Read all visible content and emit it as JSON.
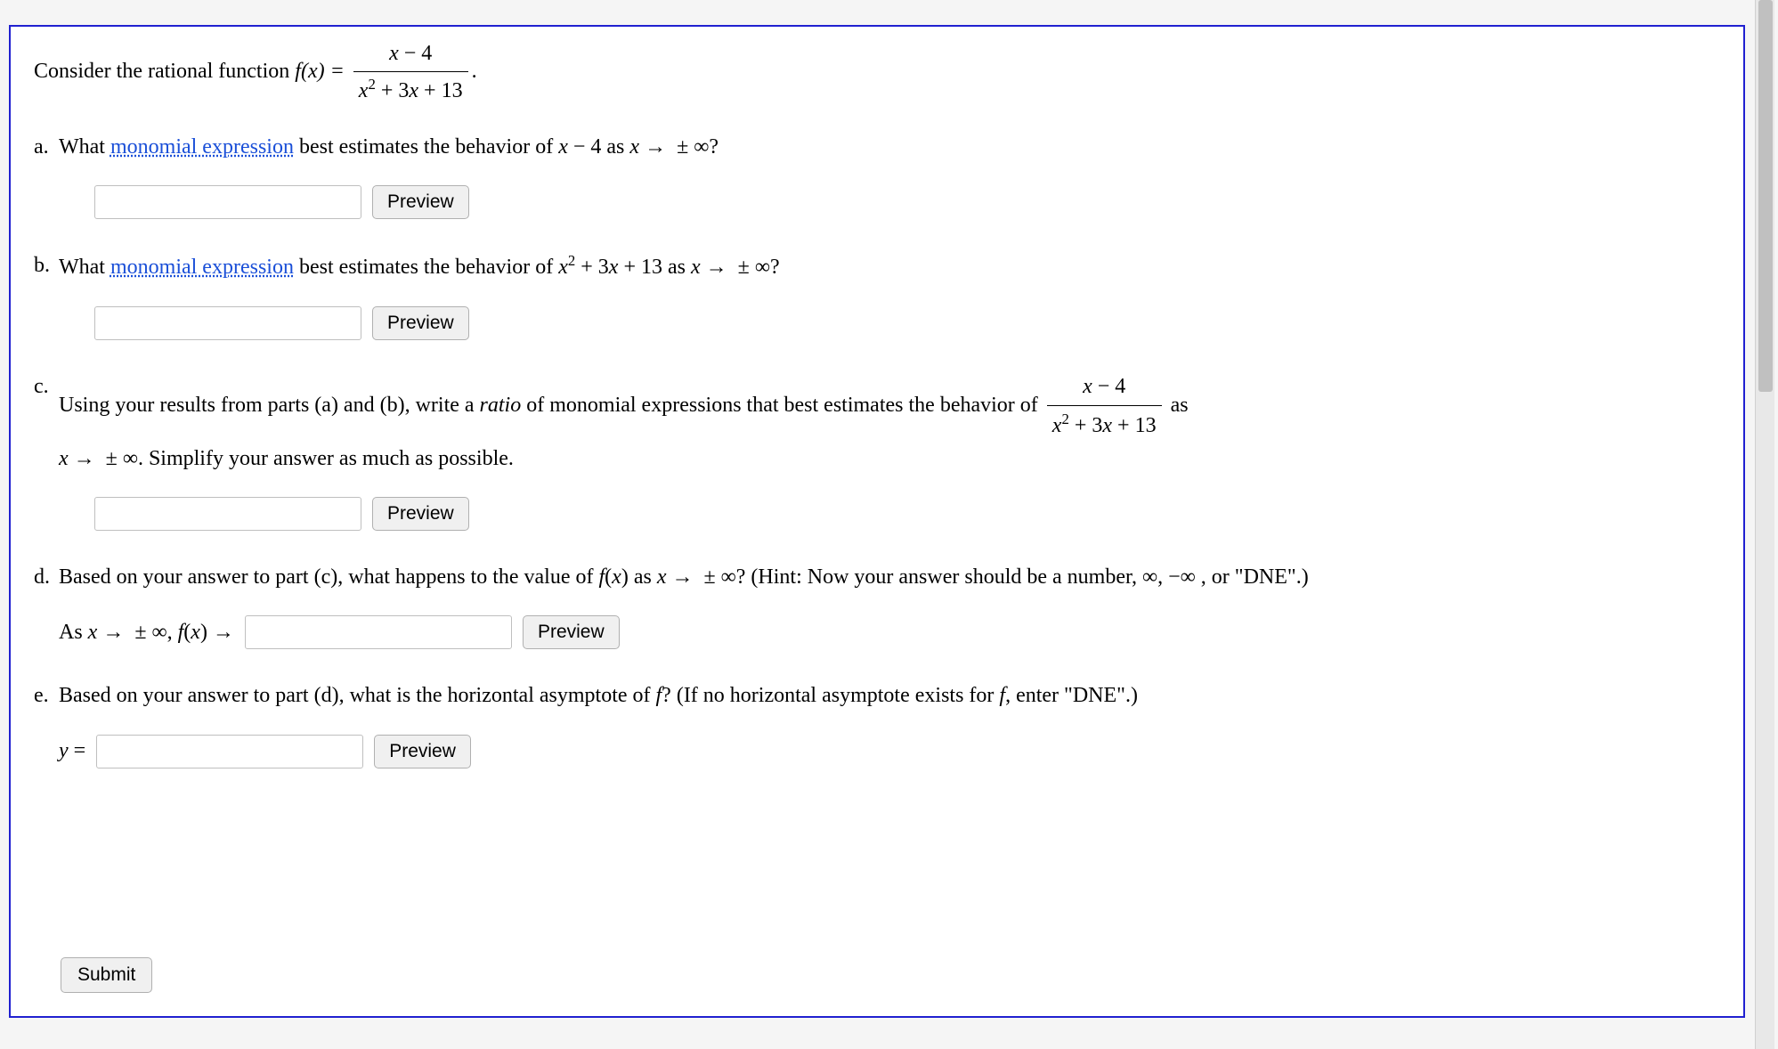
{
  "colors": {
    "border": "#2020d0",
    "link": "#1a4fd8",
    "scrollbar_track": "#e8e8e8",
    "scrollbar_thumb": "#c0c0c0",
    "button_bg": "#f0f0f0"
  },
  "intro": {
    "prefix": "Consider the rational function ",
    "func_lhs": "f(x) = ",
    "frac_num": "x − 4",
    "frac_den": "x² + 3x + 13",
    "suffix": "."
  },
  "link_text": "monomial expression",
  "preview_label": "Preview",
  "submit_label": "Submit",
  "parts": {
    "a": {
      "marker": "a.",
      "t1": "What ",
      "t2": " best estimates the behavior of ",
      "expr": "x − 4",
      "t3": " as ",
      "limit": "x → ± ∞?",
      "input_value": "",
      "placeholder": ""
    },
    "b": {
      "marker": "b.",
      "t1": "What ",
      "t2": " best estimates the behavior of ",
      "expr": "x² + 3x + 13",
      "t3": " as ",
      "limit": "x → ± ∞?",
      "input_value": "",
      "placeholder": ""
    },
    "c": {
      "marker": "c.",
      "t1": "Using your results from parts (a) and (b), write a ",
      "ratio_word": "ratio",
      "t2": " of monomial expressions that best estimates the behavior of ",
      "frac_num": "x − 4",
      "frac_den": "x² + 3x + 13",
      "t3": " as ",
      "limit": "x → ± ∞.",
      "t4": " Simplify your answer as much as possible.",
      "input_value": "",
      "placeholder": ""
    },
    "d": {
      "marker": "d.",
      "t1": "Based on your answer to part (c), what happens to the value of ",
      "fexpr": "f(x)",
      "t2": " as ",
      "limit": "x → ± ∞?",
      "hint": " (Hint: Now your answer should be a number, ∞, −∞ , or \"DNE\".)",
      "prefix": "As x → ± ∞, f(x) → ",
      "input_value": "",
      "placeholder": ""
    },
    "e": {
      "marker": "e.",
      "t1": "Based on your answer to part (d), what is the horizontal asymptote of ",
      "fvar": "f",
      "t2": "? (If no horizontal asymptote exists for ",
      "t3": ", enter \"DNE\".)",
      "prefix": "y = ",
      "input_value": "",
      "placeholder": ""
    }
  }
}
